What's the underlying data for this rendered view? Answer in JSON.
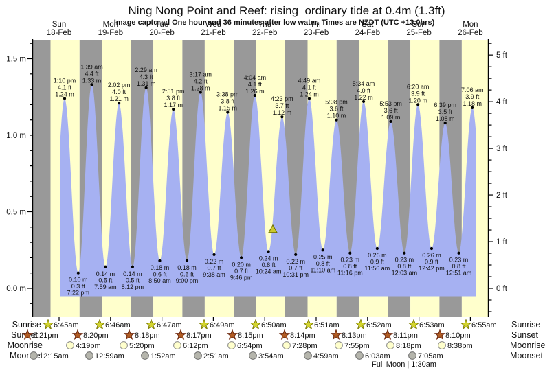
{
  "title": "Ning Nong Point and Reef: rising  ordinary tide at 0.4m (1.3ft)",
  "subtitle": "Image captured One hour and 36 minutes after low water. Times are NZDT (UTC +13.0hrs)",
  "days": [
    {
      "day": "Sun",
      "date": "18-Feb"
    },
    {
      "day": "Mon",
      "date": "19-Feb"
    },
    {
      "day": "Tue",
      "date": "20-Feb"
    },
    {
      "day": "Wed",
      "date": "21-Feb"
    },
    {
      "day": "Thu",
      "date": "22-Feb"
    },
    {
      "day": "Fri",
      "date": "23-Feb"
    },
    {
      "day": "Sat",
      "date": "24-Feb"
    },
    {
      "day": "Sun",
      "date": "25-Feb"
    },
    {
      "day": "Mon",
      "date": "26-Feb"
    }
  ],
  "y_axis_left": {
    "ticks": [
      {
        "label": "1.5 m",
        "value": 1.5
      },
      {
        "label": "1.0 m",
        "value": 1.0
      },
      {
        "label": "0.5 m",
        "value": 0.5
      },
      {
        "label": "0.0 m",
        "value": 0.0
      }
    ]
  },
  "y_axis_right": {
    "ticks": [
      {
        "label": "5 ft",
        "value": 5
      },
      {
        "label": "4 ft",
        "value": 4
      },
      {
        "label": "3 ft",
        "value": 3
      },
      {
        "label": "2 ft",
        "value": 2
      },
      {
        "label": "1 ft",
        "value": 1
      },
      {
        "label": "0 ft",
        "value": 0
      }
    ]
  },
  "chart_data": {
    "type": "area",
    "series_label": "tide height",
    "unit_left": "m",
    "unit_right": "ft",
    "ylim_m": [
      -0.19,
      1.62
    ],
    "highs": [
      {
        "time": "1:10 pm",
        "height_ft": 4.1,
        "height_m": 1.24
      },
      {
        "time": "1:39 am",
        "height_ft": 4.4,
        "height_m": 1.33
      },
      {
        "time": "2:02 pm",
        "height_ft": 4.0,
        "height_m": 1.21
      },
      {
        "time": "2:29 am",
        "height_ft": 4.3,
        "height_m": 1.31
      },
      {
        "time": "2:51 pm",
        "height_ft": 3.8,
        "height_m": 1.17
      },
      {
        "time": "3:17 am",
        "height_ft": 4.2,
        "height_m": 1.28
      },
      {
        "time": "3:38 pm",
        "height_ft": 3.8,
        "height_m": 1.15
      },
      {
        "time": "4:04 am",
        "height_ft": 4.1,
        "height_m": 1.26
      },
      {
        "time": "4:23 pm",
        "height_ft": 3.7,
        "height_m": 1.12
      },
      {
        "time": "4:49 am",
        "height_ft": 4.1,
        "height_m": 1.24
      },
      {
        "time": "5:08 pm",
        "height_ft": 3.6,
        "height_m": 1.1
      },
      {
        "time": "5:34 am",
        "height_ft": 4.0,
        "height_m": 1.22
      },
      {
        "time": "5:53 pm",
        "height_ft": 3.6,
        "height_m": 1.09
      },
      {
        "time": "6:20 am",
        "height_ft": 3.9,
        "height_m": 1.2
      },
      {
        "time": "6:39 pm",
        "height_ft": 3.5,
        "height_m": 1.08
      },
      {
        "time": "7:06 am",
        "height_ft": 3.9,
        "height_m": 1.18
      }
    ],
    "lows": [
      {
        "height_m": 0.1,
        "height_ft": 0.3,
        "time": "7:22 pm"
      },
      {
        "height_m": 0.14,
        "height_ft": 0.5,
        "time": "7:59 am"
      },
      {
        "height_m": 0.14,
        "height_ft": 0.5,
        "time": "8:12 pm"
      },
      {
        "height_m": 0.18,
        "height_ft": 0.6,
        "time": "8:50 am"
      },
      {
        "height_m": 0.18,
        "height_ft": 0.6,
        "time": "9:00 pm"
      },
      {
        "height_m": 0.22,
        "height_ft": 0.7,
        "time": "9:38 am"
      },
      {
        "height_m": 0.2,
        "height_ft": 0.7,
        "time": "9:46 pm"
      },
      {
        "height_m": 0.24,
        "height_ft": 0.8,
        "time": "10:24 am"
      },
      {
        "height_m": 0.22,
        "height_ft": 0.7,
        "time": "10:31 pm"
      },
      {
        "height_m": 0.25,
        "height_ft": 0.8,
        "time": "11:10 am"
      },
      {
        "height_m": 0.23,
        "height_ft": 0.8,
        "time": "11:16 pm"
      },
      {
        "height_m": 0.26,
        "height_ft": 0.9,
        "time": "11:56 am"
      },
      {
        "height_m": 0.23,
        "height_ft": 0.8,
        "time": "12:03 am"
      },
      {
        "height_m": 0.26,
        "height_ft": 0.9,
        "time": "12:42 pm"
      },
      {
        "height_m": 0.23,
        "height_ft": 0.8,
        "time": "12:51 am"
      }
    ],
    "current_marker": {
      "height_m": 0.4,
      "height_ft": 1.3,
      "trend": "rising"
    }
  },
  "astro": {
    "rows": [
      {
        "label": "Sunrise",
        "times": [
          "6:45am",
          "6:46am",
          "6:47am",
          "6:49am",
          "6:50am",
          "6:51am",
          "6:52am",
          "6:53am",
          "6:55am"
        ]
      },
      {
        "label": "Sunset",
        "times": [
          "8:21pm",
          "8:20pm",
          "8:18pm",
          "8:17pm",
          "8:15pm",
          "8:14pm",
          "8:13pm",
          "8:11pm",
          "8:10pm"
        ]
      },
      {
        "label": "Moonrise",
        "times": [
          null,
          "4:19pm",
          "5:20pm",
          "6:12pm",
          "6:54pm",
          "7:28pm",
          "7:55pm",
          "8:18pm",
          "8:38pm"
        ]
      },
      {
        "label": "Moonset",
        "times": [
          "12:15am",
          "12:59am",
          "1:52am",
          "2:51am",
          "3:54am",
          "4:59am",
          "6:03am",
          "7:05am",
          null
        ]
      }
    ],
    "moon_note": "Full Moon | 1:30am"
  },
  "colors": {
    "day_band": "#ffffcc",
    "night_band": "#999999",
    "tide_fill": "#a6b1f2",
    "date_label": "#e62626",
    "sunrise_star": "#d3d42e",
    "sunrise_star_edge": "#787800",
    "sunset_star": "#b25d24",
    "sunset_star_edge": "#6e2a10",
    "moonrise_fill": "#ffffcc",
    "moonrise_edge": "#8a8a8a",
    "moonset_fill": "#b5b5ac",
    "moonset_edge": "#6f6f6f",
    "marker_fill": "#cbc92f",
    "marker_edge": "#6b6b00",
    "axis_color": "#000000"
  }
}
